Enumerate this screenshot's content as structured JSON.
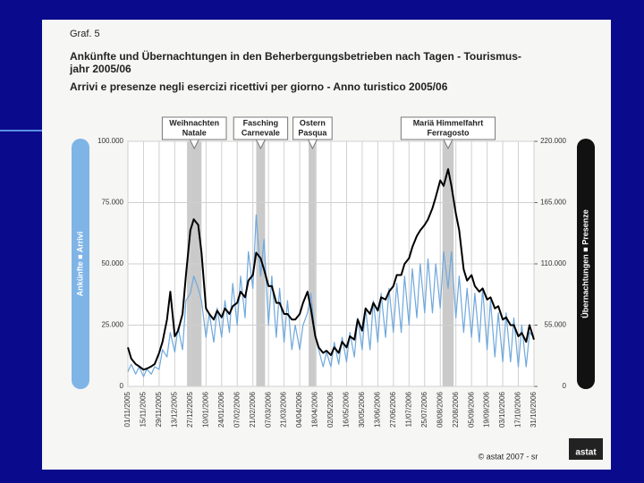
{
  "chart_data": {
    "type": "line",
    "label": "Graf. 5",
    "title": [
      "Ankünfte und Übernachtungen in den Beherbergungsbetrieben nach Tagen - Tourismus-",
      "jahr 2005/06"
    ],
    "subtitle": "Arrivi e presenze negli esercizi ricettivi per giorno - Anno turistico 2005/06",
    "ylabel": "Ankünfte ■ Arrivi",
    "y2label": "Übernachtungen ■ Presenze",
    "source": "© astat 2007 - sr",
    "logo": "astat",
    "grid": true,
    "x": [
      "01/11/2005",
      "04/11/2005",
      "08/11/2005",
      "11/11/2005",
      "15/11/2005",
      "18/11/2005",
      "22/11/2005",
      "25/11/2005",
      "29/11/2005",
      "02/12/2005",
      "06/12/2005",
      "09/12/2005",
      "13/12/2005",
      "16/12/2005",
      "20/12/2005",
      "23/12/2005",
      "27/12/2005",
      "30/12/2005",
      "03/01/2006",
      "06/01/2006",
      "10/01/2006",
      "13/01/2006",
      "17/01/2006",
      "20/01/2006",
      "24/01/2006",
      "27/01/2006",
      "31/01/2006",
      "03/02/2006",
      "07/02/2006",
      "10/02/2006",
      "14/02/2006",
      "17/02/2006",
      "21/02/2006",
      "24/02/2006",
      "28/02/2006",
      "03/03/2006",
      "07/03/2006",
      "10/03/2006",
      "14/03/2006",
      "17/03/2006",
      "21/03/2006",
      "24/03/2006",
      "28/03/2006",
      "31/03/2006",
      "04/04/2006",
      "07/04/2006",
      "11/04/2006",
      "14/04/2006",
      "18/04/2006",
      "21/04/2006",
      "25/04/2006",
      "28/04/2006",
      "02/05/2006",
      "05/05/2006",
      "09/05/2006",
      "12/05/2006",
      "16/05/2006",
      "19/05/2006",
      "23/05/2006",
      "26/05/2006",
      "30/05/2006",
      "02/06/2006",
      "06/06/2006",
      "09/06/2006",
      "13/06/2006",
      "16/06/2006",
      "20/06/2006",
      "23/06/2006",
      "27/06/2006",
      "30/06/2006",
      "04/07/2006",
      "07/07/2006",
      "11/07/2006",
      "14/07/2006",
      "18/07/2006",
      "21/07/2006",
      "25/07/2006",
      "28/07/2006",
      "01/08/2006",
      "04/08/2006",
      "08/08/2006",
      "11/08/2006",
      "15/08/2006",
      "18/08/2006",
      "22/08/2006",
      "25/08/2006",
      "29/08/2006",
      "01/09/2006",
      "05/09/2006",
      "08/09/2006",
      "12/09/2006",
      "15/09/2006",
      "19/09/2006",
      "22/09/2006",
      "26/09/2006",
      "29/09/2006",
      "03/10/2006",
      "06/10/2006",
      "10/10/2006",
      "13/10/2006",
      "17/10/2006",
      "20/10/2006",
      "24/10/2006",
      "27/10/2006",
      "31/10/2006"
    ],
    "series": [
      {
        "color": "#6fa8dc",
        "axis": "y",
        "values": [
          6000,
          9000,
          5000,
          8000,
          4000,
          7000,
          5000,
          8000,
          7000,
          15000,
          12000,
          22000,
          14000,
          24000,
          15000,
          35000,
          38000,
          45000,
          40000,
          35000,
          20000,
          30000,
          18000,
          32000,
          20000,
          35000,
          22000,
          42000,
          25000,
          45000,
          28000,
          55000,
          40000,
          70000,
          45000,
          60000,
          25000,
          45000,
          20000,
          40000,
          18000,
          35000,
          15000,
          25000,
          15000,
          25000,
          30000,
          38000,
          20000,
          15000,
          8000,
          14000,
          8000,
          18000,
          9000,
          20000,
          10000,
          22000,
          12000,
          28000,
          15000,
          32000,
          15000,
          35000,
          18000,
          38000,
          20000,
          40000,
          22000,
          42000,
          22000,
          45000,
          25000,
          48000,
          28000,
          50000,
          30000,
          52000,
          30000,
          50000,
          32000,
          55000,
          40000,
          55000,
          28000,
          45000,
          22000,
          40000,
          20000,
          38000,
          18000,
          40000,
          15000,
          35000,
          12000,
          30000,
          10000,
          30000,
          10000,
          28000,
          8000,
          25000,
          8000,
          22000,
          20000
        ]
      },
      {
        "color": "#000000",
        "axis": "y2",
        "values": [
          35000,
          25000,
          20000,
          18000,
          15000,
          16000,
          18000,
          20000,
          30000,
          40000,
          60000,
          85000,
          45000,
          50000,
          65000,
          100000,
          140000,
          150000,
          145000,
          120000,
          70000,
          65000,
          60000,
          68000,
          62000,
          70000,
          65000,
          72000,
          75000,
          85000,
          80000,
          95000,
          100000,
          120000,
          115000,
          105000,
          90000,
          90000,
          75000,
          75000,
          65000,
          65000,
          60000,
          60000,
          65000,
          75000,
          85000,
          70000,
          45000,
          35000,
          30000,
          32000,
          28000,
          35000,
          30000,
          40000,
          35000,
          45000,
          42000,
          60000,
          50000,
          70000,
          65000,
          75000,
          68000,
          80000,
          78000,
          85000,
          90000,
          100000,
          100000,
          110000,
          115000,
          125000,
          135000,
          140000,
          145000,
          150000,
          160000,
          170000,
          185000,
          180000,
          195000,
          180000,
          155000,
          140000,
          105000,
          95000,
          100000,
          90000,
          85000,
          88000,
          78000,
          80000,
          70000,
          72000,
          60000,
          62000,
          55000,
          55000,
          45000,
          48000,
          40000,
          55000,
          42000
        ]
      }
    ],
    "xlim": [
      "01/11/2005",
      "31/10/2006"
    ],
    "xticks": [
      "01/11/2005",
      "15/11/2005",
      "29/11/2005",
      "13/12/2005",
      "27/12/2005",
      "10/01/2006",
      "24/01/2006",
      "07/02/2006",
      "21/02/2006",
      "07/03/2006",
      "21/03/2006",
      "04/04/2006",
      "18/04/2006",
      "02/05/2006",
      "16/05/2006",
      "30/05/2006",
      "13/06/2006",
      "27/06/2006",
      "11/07/2006",
      "25/07/2006",
      "08/08/2006",
      "22/08/2006",
      "05/09/2006",
      "19/09/2006",
      "03/10/2006",
      "17/10/2006",
      "31/10/2006"
    ],
    "ylim": [
      0,
      100000
    ],
    "yticks": [
      0,
      {
        "value": 25000,
        "label": "25.000"
      },
      {
        "value": 50000,
        "label": "50.000"
      },
      {
        "value": 75000,
        "label": "75.000"
      },
      {
        "value": 100000,
        "label": "100.000"
      }
    ],
    "y2lim": [
      0,
      220000
    ],
    "y2ticks": [
      0,
      {
        "value": 55000,
        "label": "55.000"
      },
      {
        "value": 110000,
        "label": "110.000"
      },
      {
        "value": 165000,
        "label": "165.000"
      },
      {
        "value": 220000,
        "label": "220.000"
      }
    ],
    "annotations": [
      {
        "label": [
          "Weihnachten",
          "Natale"
        ],
        "start": "24/12/2005",
        "end": "06/01/2006"
      },
      {
        "label": [
          "Fasching",
          "Carnevale"
        ],
        "start": "24/02/2006",
        "end": "04/03/2006"
      },
      {
        "label": [
          "Ostern",
          "Pasqua"
        ],
        "start": "12/04/2006",
        "end": "19/04/2006"
      },
      {
        "label": [
          "Mariä Himmelfahrt",
          "Ferragosto"
        ],
        "start": "10/08/2006",
        "end": "20/08/2006"
      }
    ]
  }
}
